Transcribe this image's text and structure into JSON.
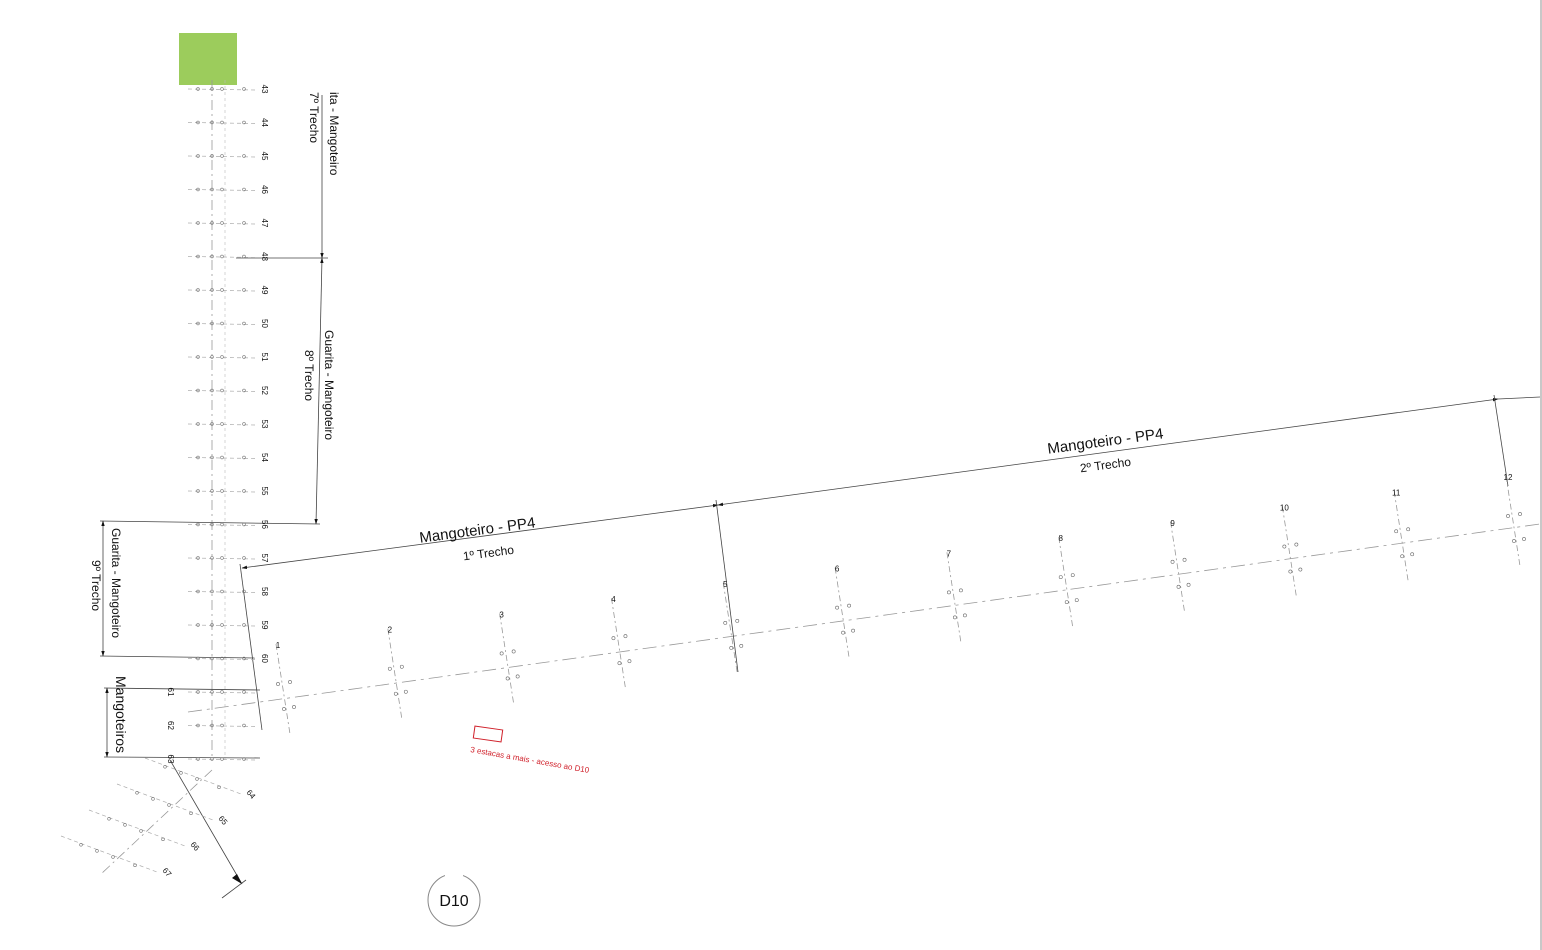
{
  "colors": {
    "marker": "#9ccc5c",
    "ink": "#111111",
    "faint": "#777777",
    "annotation": "#d0202a"
  },
  "labels": {
    "trecho1_title": "Mangoteiro - PP4",
    "trecho1_sub": "1º Trecho",
    "trecho2_title": "Mangoteiro - PP4",
    "trecho2_sub": "2º Trecho",
    "trecho7_title": "ita - Mangoteiro",
    "trecho7_sub": "7º Trecho",
    "trecho8_title": "Guarita - Mangoteiro",
    "trecho8_sub": "8º Trecho",
    "trecho9_title": "Guarita - Mangoteiro",
    "trecho9_sub": "9º Trecho",
    "mangoteiros": "Mangoteiros",
    "annotation": "3 estacas a mais - acesso ao D10",
    "d10": "D10"
  },
  "stakes_main": [
    "1",
    "2",
    "3",
    "4",
    "5",
    "6",
    "7",
    "8",
    "9",
    "10",
    "11",
    "12"
  ],
  "stakes_vertical": [
    "43",
    "44",
    "45",
    "46",
    "47",
    "48",
    "49",
    "50",
    "51",
    "52",
    "53",
    "54",
    "55",
    "56",
    "57",
    "58",
    "59",
    "60",
    "61",
    "62",
    "63"
  ],
  "stakes_diagonal": [
    "64",
    "65",
    "66",
    "67"
  ]
}
